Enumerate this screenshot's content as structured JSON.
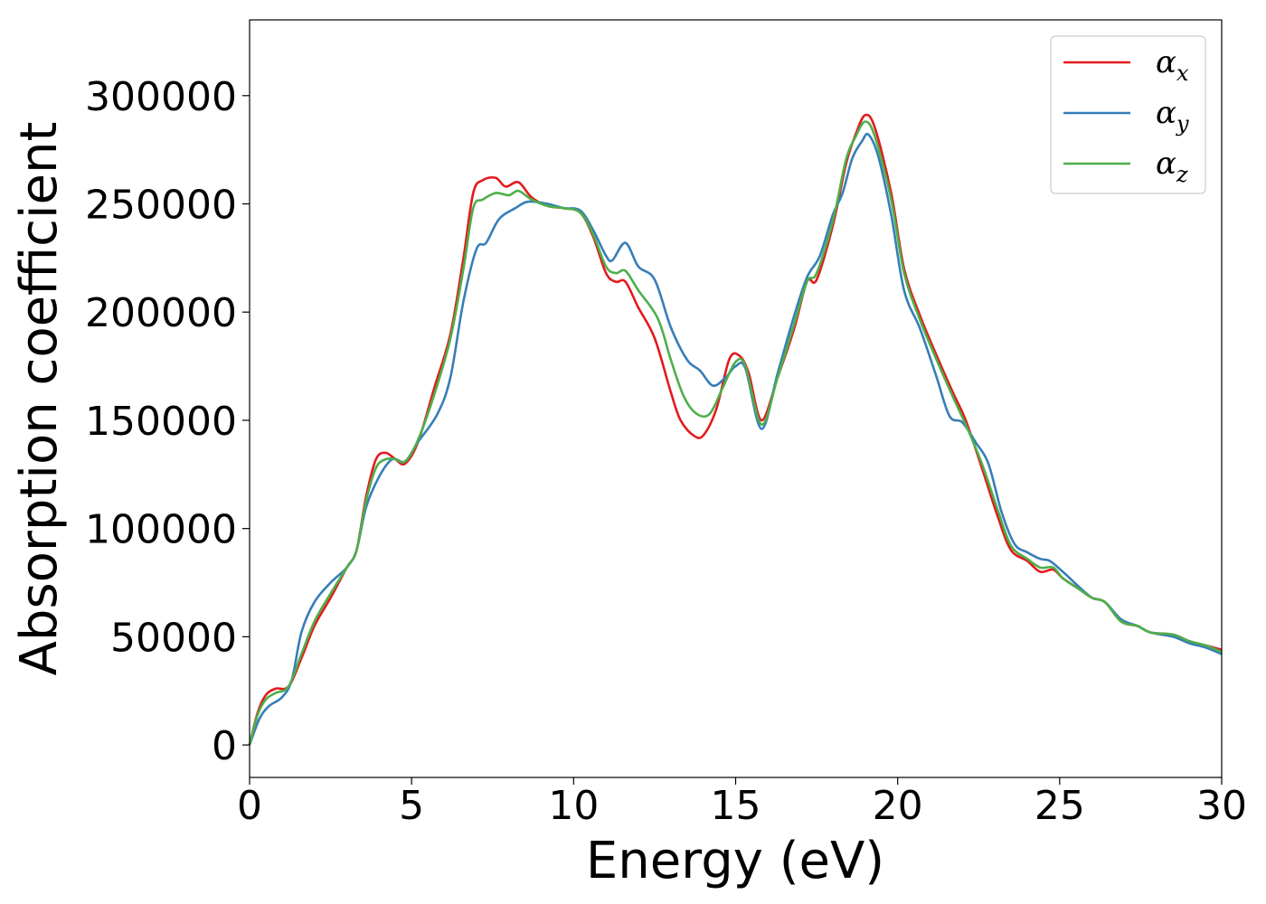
{
  "chart_data": {
    "type": "line",
    "title": "",
    "xlabel": "Energy (eV)",
    "ylabel": "Absorption coefficient",
    "xlim": [
      0,
      30
    ],
    "ylim": [
      -15000,
      335000
    ],
    "xticks": [
      0,
      5,
      10,
      15,
      20,
      25,
      30
    ],
    "yticks": [
      0,
      50000,
      100000,
      150000,
      200000,
      250000,
      300000
    ],
    "grid": false,
    "legend_position": "top-right",
    "series": [
      {
        "name": "αx",
        "symbol": "α",
        "subscript": "x",
        "color": "#e41a1c",
        "points": [
          [
            0,
            0
          ],
          [
            0.25,
            15000
          ],
          [
            0.5,
            23000
          ],
          [
            0.8,
            26000
          ],
          [
            1.2,
            27000
          ],
          [
            1.6,
            40000
          ],
          [
            2.0,
            55000
          ],
          [
            2.5,
            68000
          ],
          [
            3.0,
            82000
          ],
          [
            3.3,
            90000
          ],
          [
            3.6,
            115000
          ],
          [
            3.9,
            132000
          ],
          [
            4.2,
            135000
          ],
          [
            4.5,
            132000
          ],
          [
            4.8,
            130000
          ],
          [
            5.2,
            140000
          ],
          [
            5.7,
            165000
          ],
          [
            6.2,
            190000
          ],
          [
            6.6,
            225000
          ],
          [
            6.9,
            255000
          ],
          [
            7.2,
            261000
          ],
          [
            7.6,
            262000
          ],
          [
            7.9,
            258000
          ],
          [
            8.3,
            260000
          ],
          [
            8.7,
            253000
          ],
          [
            9.2,
            249000
          ],
          [
            9.7,
            248000
          ],
          [
            10.2,
            246000
          ],
          [
            10.6,
            235000
          ],
          [
            11.0,
            218000
          ],
          [
            11.3,
            214000
          ],
          [
            11.6,
            214000
          ],
          [
            12.0,
            202000
          ],
          [
            12.5,
            188000
          ],
          [
            13.0,
            163000
          ],
          [
            13.3,
            150000
          ],
          [
            13.7,
            143000
          ],
          [
            14.0,
            143000
          ],
          [
            14.4,
            155000
          ],
          [
            14.8,
            178000
          ],
          [
            15.1,
            180000
          ],
          [
            15.4,
            172000
          ],
          [
            15.8,
            150000
          ],
          [
            16.3,
            170000
          ],
          [
            16.8,
            192000
          ],
          [
            17.2,
            214000
          ],
          [
            17.5,
            215000
          ],
          [
            18.0,
            240000
          ],
          [
            18.4,
            268000
          ],
          [
            18.7,
            282000
          ],
          [
            19.0,
            291000
          ],
          [
            19.3,
            285000
          ],
          [
            19.8,
            255000
          ],
          [
            20.2,
            220000
          ],
          [
            20.7,
            198000
          ],
          [
            21.2,
            180000
          ],
          [
            21.7,
            163000
          ],
          [
            22.1,
            150000
          ],
          [
            22.6,
            128000
          ],
          [
            23.1,
            105000
          ],
          [
            23.5,
            90000
          ],
          [
            24.0,
            85000
          ],
          [
            24.4,
            80000
          ],
          [
            24.8,
            81000
          ],
          [
            25.1,
            77000
          ],
          [
            25.6,
            72000
          ],
          [
            26.0,
            68000
          ],
          [
            26.4,
            66000
          ],
          [
            26.9,
            57000
          ],
          [
            27.4,
            55000
          ],
          [
            27.8,
            52000
          ],
          [
            28.5,
            51000
          ],
          [
            29.0,
            48000
          ],
          [
            29.5,
            46000
          ],
          [
            30.0,
            44000
          ]
        ]
      },
      {
        "name": "αy",
        "symbol": "α",
        "subscript": "y",
        "color": "#377eb8",
        "points": [
          [
            0,
            0
          ],
          [
            0.3,
            12000
          ],
          [
            0.6,
            18000
          ],
          [
            1.0,
            22000
          ],
          [
            1.3,
            30000
          ],
          [
            1.6,
            52000
          ],
          [
            2.0,
            66000
          ],
          [
            2.5,
            75000
          ],
          [
            3.0,
            82000
          ],
          [
            3.3,
            90000
          ],
          [
            3.6,
            110000
          ],
          [
            4.0,
            124000
          ],
          [
            4.4,
            132000
          ],
          [
            4.8,
            131000
          ],
          [
            5.2,
            140000
          ],
          [
            5.8,
            153000
          ],
          [
            6.2,
            170000
          ],
          [
            6.6,
            205000
          ],
          [
            7.0,
            229000
          ],
          [
            7.3,
            232000
          ],
          [
            7.7,
            243000
          ],
          [
            8.2,
            248000
          ],
          [
            8.6,
            251000
          ],
          [
            9.2,
            250000
          ],
          [
            9.7,
            248000
          ],
          [
            10.2,
            247000
          ],
          [
            10.6,
            238000
          ],
          [
            11.0,
            226000
          ],
          [
            11.2,
            224000
          ],
          [
            11.6,
            232000
          ],
          [
            12.0,
            221000
          ],
          [
            12.5,
            215000
          ],
          [
            13.0,
            193000
          ],
          [
            13.5,
            178000
          ],
          [
            13.9,
            173000
          ],
          [
            14.3,
            166000
          ],
          [
            14.7,
            170000
          ],
          [
            15.0,
            175000
          ],
          [
            15.3,
            174000
          ],
          [
            15.8,
            146000
          ],
          [
            16.3,
            172000
          ],
          [
            16.8,
            198000
          ],
          [
            17.2,
            216000
          ],
          [
            17.6,
            226000
          ],
          [
            18.0,
            245000
          ],
          [
            18.3,
            255000
          ],
          [
            18.6,
            271000
          ],
          [
            18.9,
            279000
          ],
          [
            19.1,
            282000
          ],
          [
            19.4,
            272000
          ],
          [
            19.8,
            245000
          ],
          [
            20.2,
            210000
          ],
          [
            20.7,
            192000
          ],
          [
            21.2,
            170000
          ],
          [
            21.6,
            152000
          ],
          [
            22.0,
            149000
          ],
          [
            22.4,
            140000
          ],
          [
            22.8,
            130000
          ],
          [
            23.2,
            108000
          ],
          [
            23.6,
            93000
          ],
          [
            24.0,
            89000
          ],
          [
            24.4,
            86000
          ],
          [
            24.7,
            85000
          ],
          [
            25.1,
            80000
          ],
          [
            25.6,
            73000
          ],
          [
            26.0,
            68000
          ],
          [
            26.4,
            66000
          ],
          [
            26.9,
            58000
          ],
          [
            27.4,
            55000
          ],
          [
            27.8,
            52000
          ],
          [
            28.5,
            50000
          ],
          [
            29.0,
            47000
          ],
          [
            29.5,
            45000
          ],
          [
            30.0,
            42000
          ]
        ]
      },
      {
        "name": "αz",
        "symbol": "α",
        "subscript": "z",
        "color": "#4daf4a",
        "points": [
          [
            0,
            0
          ],
          [
            0.25,
            14000
          ],
          [
            0.5,
            21000
          ],
          [
            0.8,
            24000
          ],
          [
            1.2,
            27000
          ],
          [
            1.6,
            42000
          ],
          [
            2.0,
            57000
          ],
          [
            2.5,
            70000
          ],
          [
            3.0,
            82000
          ],
          [
            3.3,
            90000
          ],
          [
            3.6,
            113000
          ],
          [
            3.9,
            128000
          ],
          [
            4.2,
            132000
          ],
          [
            4.5,
            132000
          ],
          [
            4.8,
            131000
          ],
          [
            5.2,
            141000
          ],
          [
            5.7,
            162000
          ],
          [
            6.2,
            188000
          ],
          [
            6.6,
            220000
          ],
          [
            6.9,
            248000
          ],
          [
            7.2,
            252000
          ],
          [
            7.6,
            255000
          ],
          [
            8.0,
            254000
          ],
          [
            8.3,
            256000
          ],
          [
            8.7,
            252000
          ],
          [
            9.2,
            249000
          ],
          [
            9.7,
            248000
          ],
          [
            10.2,
            246000
          ],
          [
            10.6,
            236000
          ],
          [
            11.0,
            221000
          ],
          [
            11.3,
            218000
          ],
          [
            11.6,
            219000
          ],
          [
            12.0,
            210000
          ],
          [
            12.6,
            197000
          ],
          [
            13.0,
            178000
          ],
          [
            13.4,
            161000
          ],
          [
            13.8,
            153000
          ],
          [
            14.2,
            153000
          ],
          [
            14.6,
            165000
          ],
          [
            15.0,
            177000
          ],
          [
            15.3,
            175000
          ],
          [
            15.8,
            148000
          ],
          [
            16.3,
            170000
          ],
          [
            16.8,
            194000
          ],
          [
            17.2,
            214000
          ],
          [
            17.5,
            218000
          ],
          [
            18.0,
            242000
          ],
          [
            18.4,
            270000
          ],
          [
            18.7,
            281000
          ],
          [
            19.0,
            288000
          ],
          [
            19.3,
            281000
          ],
          [
            19.8,
            252000
          ],
          [
            20.2,
            218000
          ],
          [
            20.7,
            196000
          ],
          [
            21.2,
            178000
          ],
          [
            21.7,
            161000
          ],
          [
            22.1,
            148000
          ],
          [
            22.6,
            130000
          ],
          [
            23.1,
            108000
          ],
          [
            23.5,
            92000
          ],
          [
            24.0,
            86000
          ],
          [
            24.4,
            82000
          ],
          [
            24.8,
            82000
          ],
          [
            25.1,
            77000
          ],
          [
            25.6,
            72000
          ],
          [
            26.0,
            68000
          ],
          [
            26.4,
            66000
          ],
          [
            26.9,
            57000
          ],
          [
            27.4,
            55000
          ],
          [
            27.8,
            52000
          ],
          [
            28.5,
            51000
          ],
          [
            29.0,
            48000
          ],
          [
            29.5,
            46000
          ],
          [
            30.0,
            43000
          ]
        ]
      }
    ]
  }
}
